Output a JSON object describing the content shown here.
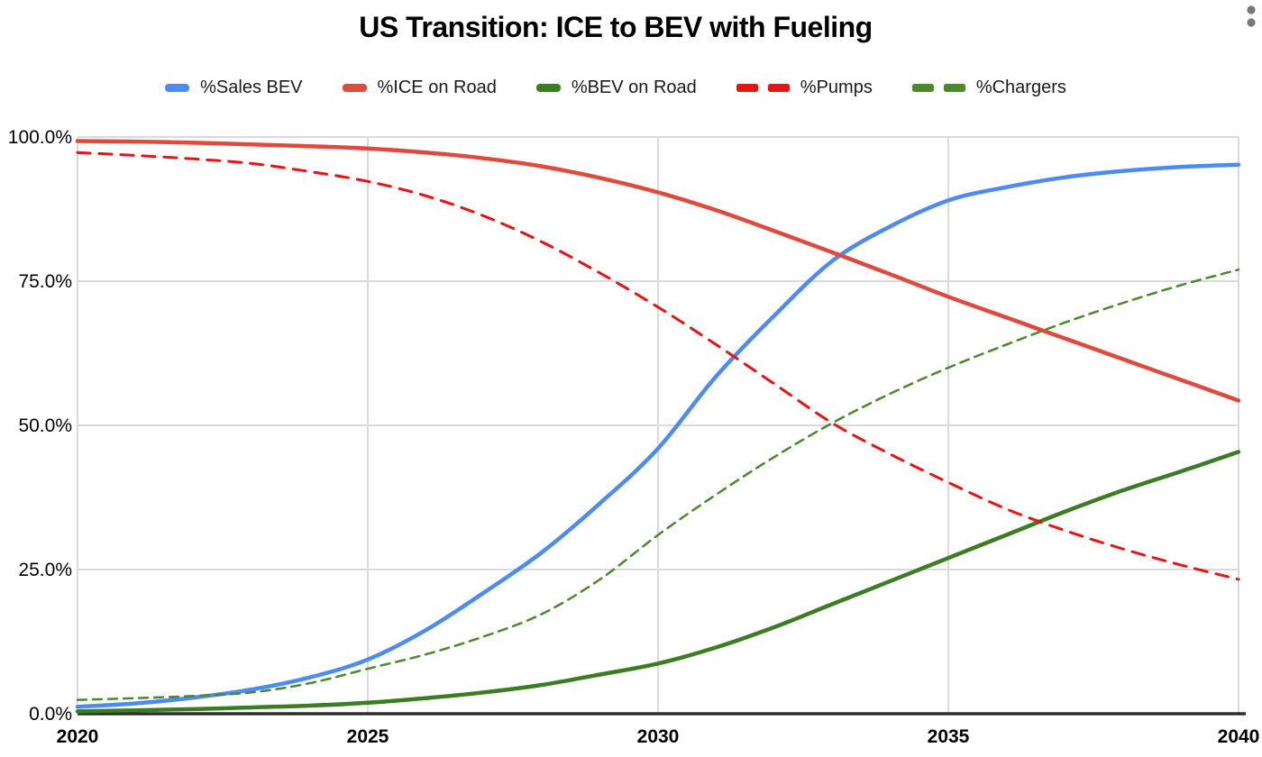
{
  "page": {
    "background": "#ffffff"
  },
  "header": {
    "overflow_menu": "two-dot-vertical-menu",
    "dot_color": "#787878"
  },
  "colors": {
    "grid": "#dadada",
    "axis": "#2e2e2e",
    "text": "#000000",
    "legend_text": "#1a1a1a"
  },
  "chart_data": {
    "type": "line",
    "title": "US Transition: ICE to BEV with Fueling",
    "xlabel": "",
    "ylabel": "",
    "xlim": [
      2020,
      2040
    ],
    "ylim": [
      0,
      100
    ],
    "grid": true,
    "legend_position": "top",
    "x": [
      2020,
      2021,
      2022,
      2023,
      2024,
      2025,
      2026,
      2027,
      2028,
      2029,
      2030,
      2031,
      2032,
      2033,
      2034,
      2035,
      2036,
      2037,
      2038,
      2039,
      2040
    ],
    "x_ticks": [
      2020,
      2025,
      2030,
      2035,
      2040
    ],
    "x_tick_labels": [
      "2020",
      "2025",
      "2030",
      "2035",
      "2040"
    ],
    "y_ticks": [
      0,
      25,
      50,
      75,
      100
    ],
    "y_tick_labels": [
      "0.0%",
      "25.0%",
      "50.0%",
      "75.0%",
      "100.0%"
    ],
    "series": [
      {
        "name": "%Sales BEV",
        "color": "#4C8BF5",
        "style": "solid",
        "width": 4.5,
        "values": [
          1.2,
          1.8,
          2.8,
          4.2,
          6.3,
          9.4,
          14.5,
          21.0,
          28.0,
          36.5,
          46.0,
          58.5,
          69.0,
          78.5,
          84.5,
          89.0,
          91.3,
          93.0,
          94.1,
          94.8,
          95.2
        ]
      },
      {
        "name": "%ICE on Road",
        "color": "#E04A3C",
        "style": "solid",
        "width": 4.5,
        "values": [
          99.3,
          99.2,
          99.0,
          98.7,
          98.4,
          98.0,
          97.3,
          96.3,
          94.9,
          92.9,
          90.4,
          87.3,
          83.7,
          80.0,
          76.2,
          72.3,
          68.7,
          65.1,
          61.5,
          57.9,
          54.3
        ]
      },
      {
        "name": "%BEV on Road",
        "color": "#3B7D23",
        "style": "solid",
        "width": 4.5,
        "values": [
          0.4,
          0.6,
          0.8,
          1.1,
          1.4,
          1.9,
          2.7,
          3.7,
          5.0,
          6.8,
          8.7,
          11.5,
          15.0,
          19.0,
          23.0,
          27.0,
          31.0,
          35.0,
          38.7,
          42.0,
          45.4
        ]
      },
      {
        "name": "%Pumps",
        "color": "#EE1111",
        "style": "dashed",
        "width": 3,
        "dash": "14 10",
        "values": [
          97.3,
          96.8,
          96.2,
          95.4,
          94.0,
          92.3,
          89.8,
          86.3,
          81.8,
          76.4,
          70.5,
          64.0,
          57.2,
          50.4,
          45.0,
          40.1,
          35.5,
          31.8,
          28.6,
          25.8,
          23.3
        ]
      },
      {
        "name": "%Chargers",
        "color": "#4A8A2D",
        "style": "dashed",
        "width": 2.5,
        "dash": "10 7",
        "values": [
          2.4,
          2.7,
          3.1,
          3.7,
          5.3,
          7.8,
          10.3,
          13.4,
          17.3,
          23.3,
          31.0,
          38.0,
          44.5,
          50.4,
          55.5,
          60.0,
          64.0,
          67.8,
          71.2,
          74.3,
          77.0
        ]
      }
    ]
  }
}
